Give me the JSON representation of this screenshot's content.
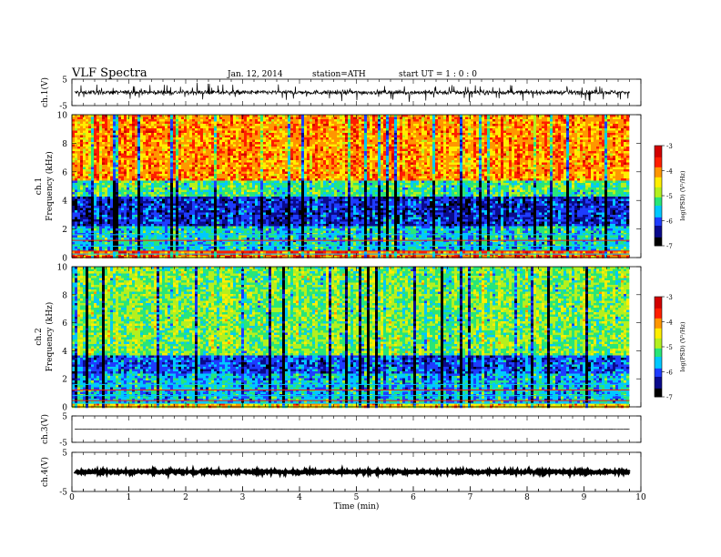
{
  "header": {
    "title": "VLF  Spectra",
    "date": "Jan. 12, 2014",
    "station": "station=ATH",
    "start": "start  UT =   1 : 0  : 0"
  },
  "chart_data": [
    {
      "type": "line",
      "id": "ch1_waveform",
      "ylabel": "ch.1(V)",
      "ylim": [
        -5,
        5
      ],
      "yticks": [
        "5",
        "-5"
      ],
      "description_values": {
        "baseline_v": 0,
        "typical_amplitude_v": 1,
        "peak_amplitude_v": 3
      },
      "color": "#000000"
    },
    {
      "type": "heatmap",
      "id": "ch1_spectrogram",
      "ylabel_top": "ch.1",
      "ylabel": "Frequency  (kHz)",
      "ylim": [
        0,
        10
      ],
      "yticks": [
        "0",
        "2",
        "4",
        "6",
        "8",
        "10"
      ],
      "bands_khz": [
        {
          "from": 0,
          "to": 0.6,
          "level": -3.8
        },
        {
          "from": 0.6,
          "to": 2.2,
          "level": -5.5
        },
        {
          "from": 2.2,
          "to": 4.3,
          "level": -6.2
        },
        {
          "from": 4.3,
          "to": 5.5,
          "level": -5.2
        },
        {
          "from": 5.5,
          "to": 10,
          "level": -4.0
        }
      ],
      "colorbar": {
        "label": "log(PSD) (V²/Hz)",
        "ticks": [
          "-3",
          "-4",
          "-5",
          "-6",
          "-7"
        ],
        "range": [
          -7,
          -3
        ]
      }
    },
    {
      "type": "heatmap",
      "id": "ch2_spectrogram",
      "ylabel_top": "ch.2",
      "ylabel": "Frequency  (kHz)",
      "ylim": [
        0,
        10
      ],
      "yticks": [
        "0",
        "2",
        "4",
        "6",
        "8",
        "10"
      ],
      "bands_khz": [
        {
          "from": 0,
          "to": 0.3,
          "level": -4.3
        },
        {
          "from": 0.3,
          "to": 2.5,
          "level": -5.6
        },
        {
          "from": 2.5,
          "to": 3.8,
          "level": -6.0
        },
        {
          "from": 3.8,
          "to": 10,
          "level": -5.0
        }
      ],
      "colorbar": {
        "label": "log(PSD) (V²/Hz)",
        "ticks": [
          "-3",
          "-4",
          "-5",
          "-6",
          "-7"
        ],
        "range": [
          -7,
          -3
        ]
      }
    },
    {
      "type": "line",
      "id": "ch3_waveform",
      "ylabel": "ch.3(V)",
      "ylim": [
        -5,
        5
      ],
      "yticks": [
        "5",
        "-5"
      ],
      "description_values": {
        "baseline_v": 0,
        "typical_amplitude_v": 0.05
      },
      "color": "#000000"
    },
    {
      "type": "line",
      "id": "ch4_waveform",
      "ylabel": "ch.4(V)",
      "ylim": [
        -5,
        5
      ],
      "yticks": [
        "5",
        "-5"
      ],
      "description_values": {
        "baseline_v": 0,
        "typical_amplitude_v": 0.3
      },
      "color": "#000000"
    }
  ],
  "x_axis": {
    "label": "Time  (min)",
    "xlim": [
      0,
      10
    ],
    "ticks": [
      "0",
      "1",
      "2",
      "3",
      "4",
      "5",
      "6",
      "7",
      "8",
      "9",
      "10"
    ],
    "data_end_min": 9.8
  },
  "colormap": [
    "#000000",
    "#0a0a8c",
    "#1e3cff",
    "#00c8ff",
    "#28e678",
    "#b4f01e",
    "#ffee00",
    "#ff9600",
    "#ff1e00",
    "#d20000",
    "#ffffff"
  ]
}
